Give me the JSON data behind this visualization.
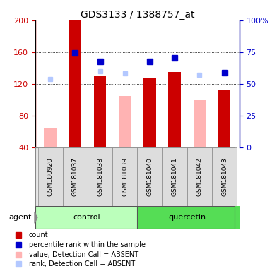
{
  "title": "GDS3133 / 1388757_at",
  "samples": [
    "GSM180920",
    "GSM181037",
    "GSM181038",
    "GSM181039",
    "GSM181040",
    "GSM181041",
    "GSM181042",
    "GSM181043"
  ],
  "count_values": [
    null,
    200,
    130,
    null,
    128,
    135,
    null,
    112
  ],
  "count_absent_values": [
    65,
    null,
    null,
    105,
    null,
    null,
    100,
    null
  ],
  "rank_present_values": [
    null,
    159,
    148,
    null,
    148,
    153,
    null,
    134
  ],
  "rank_absent_values": [
    126,
    null,
    136,
    133,
    null,
    null,
    132,
    null
  ],
  "ylim_left": [
    40,
    200
  ],
  "ylim_right": [
    0,
    100
  ],
  "yticks_left": [
    40,
    80,
    120,
    160,
    200
  ],
  "yticks_right": [
    0,
    25,
    50,
    75,
    100
  ],
  "yticklabels_right": [
    "0",
    "25",
    "50",
    "75",
    "100%"
  ],
  "color_count": "#cc0000",
  "color_rank_present": "#0000cc",
  "color_count_absent": "#ffb3b3",
  "color_rank_absent": "#b3c8ff",
  "control_bg_light": "#ccffcc",
  "control_bg_dark": "#66dd66",
  "quercetin_bg": "#55dd55",
  "bar_width": 0.5
}
